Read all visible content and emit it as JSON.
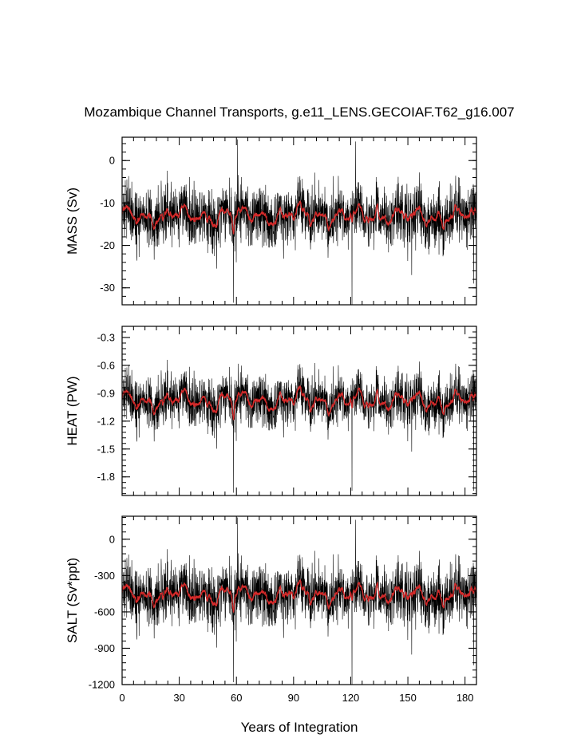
{
  "chart_data": {
    "type": "line",
    "title": "Mozambique Channel Transports, g.e11_LENS.GECOIAF.T62_g16.007",
    "xlabel": "Years of Integration",
    "xlim": [
      0,
      186
    ],
    "xticks": [
      0,
      30,
      60,
      90,
      120,
      150,
      180
    ],
    "xtick_labels": [
      "0",
      "30",
      "60",
      "90",
      "120",
      "150",
      "180"
    ],
    "series_colors": {
      "raw": "#000000",
      "smoothed": "#d42a2a"
    },
    "panels": [
      {
        "name": "mass",
        "ylabel": "MASS (Sv)",
        "ylim": [
          -34,
          5.5
        ],
        "yticks": [
          0,
          -10,
          -20,
          -30
        ],
        "ytick_labels": [
          "0",
          "-10",
          "-20",
          "-30"
        ],
        "mean": -13,
        "noise_amplitude": 6.5,
        "smooth_swing": 2.2,
        "dips": [
          {
            "year": 58.5,
            "value": -33.5
          },
          {
            "year": 120.7,
            "value": -34
          },
          {
            "year": 184.5,
            "value": -29
          }
        ],
        "spikes": [
          {
            "year": 60.5,
            "value": 5
          },
          {
            "year": 122.5,
            "value": 4.5
          }
        ]
      },
      {
        "name": "heat",
        "ylabel": "HEAT (PW)",
        "ylim": [
          -2.0,
          -0.18
        ],
        "yticks": [
          -0.3,
          -0.6,
          -0.9,
          -1.2,
          -1.5,
          -1.8
        ],
        "ytick_labels": [
          "-0.3",
          "-0.6",
          "-0.9",
          "-1.2",
          "-1.5",
          "-1.8"
        ],
        "mean": -0.98,
        "noise_amplitude": 0.26,
        "smooth_swing": 0.11,
        "dips": [
          {
            "year": 58.5,
            "value": -1.97
          },
          {
            "year": 120.7,
            "value": -1.95
          },
          {
            "year": 184.5,
            "value": -1.95
          }
        ],
        "spikes": []
      },
      {
        "name": "salt",
        "ylabel": "SALT (Sv*ppt)",
        "ylim": [
          -1200,
          190
        ],
        "yticks": [
          0,
          -300,
          -600,
          -900,
          -1200
        ],
        "ytick_labels": [
          "0",
          "-300",
          "-600",
          "-900",
          "-1200"
        ],
        "mean": -455,
        "noise_amplitude": 230,
        "smooth_swing": 75,
        "dips": [
          {
            "year": 58.5,
            "value": -1180
          },
          {
            "year": 120.7,
            "value": -1200
          },
          {
            "year": 184.5,
            "value": -1040
          }
        ],
        "spikes": [
          {
            "year": 60.5,
            "value": 180
          },
          {
            "year": 122.5,
            "value": 160
          }
        ]
      }
    ]
  }
}
